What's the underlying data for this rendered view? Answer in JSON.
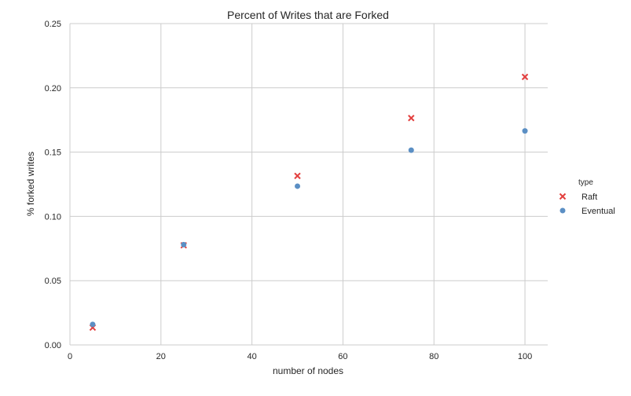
{
  "chart_data": {
    "type": "scatter",
    "title": "Percent of Writes that are Forked",
    "xlabel": "number of nodes",
    "ylabel": "% forked writes",
    "xlim": [
      0,
      105
    ],
    "ylim": [
      0,
      0.25
    ],
    "xticks": [
      0,
      20,
      40,
      60,
      80,
      100
    ],
    "yticks": [
      0.0,
      0.05,
      0.1,
      0.15,
      0.2,
      0.25
    ],
    "xtick_labels": [
      "0",
      "20",
      "40",
      "60",
      "80",
      "100"
    ],
    "ytick_labels": [
      "0.00",
      "0.05",
      "0.10",
      "0.15",
      "0.20",
      "0.25"
    ],
    "grid": true,
    "legend": {
      "title": "type",
      "placement": "right"
    },
    "series": [
      {
        "name": "Raft",
        "marker": "x",
        "color": "#e3403f",
        "x": [
          5,
          25,
          50,
          75,
          100
        ],
        "y": [
          0.0135,
          0.0775,
          0.1315,
          0.1765,
          0.2085
        ]
      },
      {
        "name": "Eventual",
        "marker": "circle",
        "color": "#5b8fc4",
        "x": [
          5,
          25,
          50,
          75,
          100
        ],
        "y": [
          0.016,
          0.078,
          0.1235,
          0.1515,
          0.1665
        ]
      }
    ]
  }
}
